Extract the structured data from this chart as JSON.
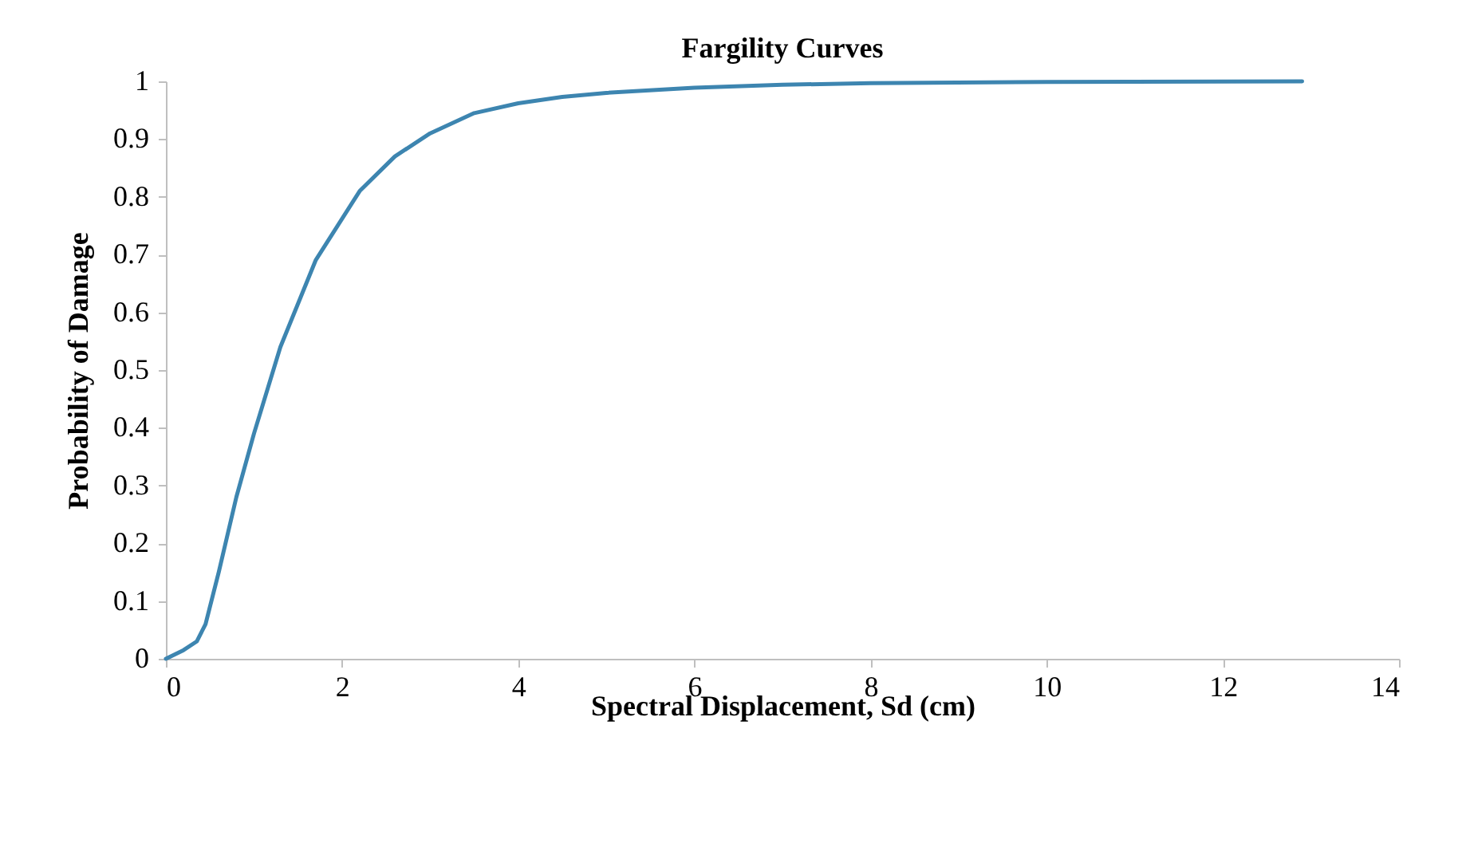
{
  "chart_data": {
    "type": "line",
    "title": "Fargility Curves",
    "xlabel": "Spectral Displacement, Sd (cm)",
    "ylabel": "Probability of Damage",
    "x": [
      0,
      0.2,
      0.35,
      0.45,
      0.6,
      0.8,
      1.0,
      1.3,
      1.7,
      2.2,
      2.6,
      3,
      3.5,
      4,
      4.5,
      5,
      6,
      7,
      8,
      10,
      12.9
    ],
    "series": [
      {
        "color": "#3d85b0",
        "values": [
          0,
          0.015,
          0.03,
          0.06,
          0.15,
          0.28,
          0.39,
          0.54,
          0.69,
          0.81,
          0.87,
          0.91,
          0.945,
          0.962,
          0.973,
          0.98,
          0.989,
          0.994,
          0.997,
          0.999,
          1
        ]
      }
    ],
    "xlim": [
      0,
      14
    ],
    "xticks": [
      0,
      2,
      4,
      6,
      8,
      10,
      12,
      14
    ],
    "ylim": [
      0,
      1
    ],
    "yticks": [
      0,
      0.1,
      0.2,
      0.3,
      0.4,
      0.5,
      0.6,
      0.7,
      0.8,
      0.9,
      1
    ],
    "grid": false,
    "marker": "none",
    "line_style": "solid"
  }
}
